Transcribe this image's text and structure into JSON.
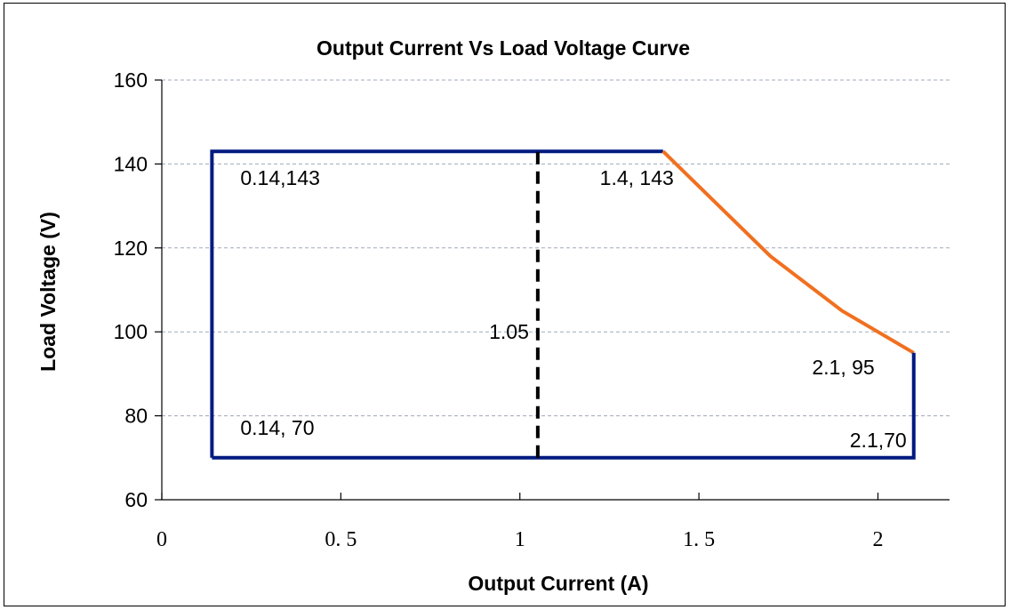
{
  "chart_data": {
    "type": "line",
    "title": "Output Current Vs Load Voltage Curve",
    "xlabel": "Output Current (A)",
    "ylabel": "Load Voltage (V)",
    "xlim": [
      0,
      2.2
    ],
    "ylim": [
      60,
      160
    ],
    "x_ticks": [
      {
        "value": 0,
        "label": "0"
      },
      {
        "value": 0.5,
        "label": "0. 5"
      },
      {
        "value": 1,
        "label": "1"
      },
      {
        "value": 1.5,
        "label": "1. 5"
      },
      {
        "value": 2,
        "label": "2"
      }
    ],
    "y_ticks": [
      {
        "value": 60,
        "label": "60"
      },
      {
        "value": 80,
        "label": "80"
      },
      {
        "value": 100,
        "label": "100"
      },
      {
        "value": 120,
        "label": "120"
      },
      {
        "value": 140,
        "label": "140"
      },
      {
        "value": 160,
        "label": "160"
      }
    ],
    "grid": "horizontal-dashed",
    "series": [
      {
        "color": "#001a80",
        "style": "solid",
        "points": [
          [
            0.14,
            70
          ],
          [
            0.14,
            143
          ],
          [
            1.4,
            143
          ]
        ]
      },
      {
        "color": "#f07020",
        "style": "solid",
        "points": [
          [
            1.4,
            143
          ],
          [
            1.7,
            118
          ],
          [
            1.9,
            105
          ],
          [
            2.1,
            95
          ]
        ]
      },
      {
        "color": "#001a80",
        "style": "solid",
        "points": [
          [
            2.1,
            95
          ],
          [
            2.1,
            70
          ],
          [
            0.14,
            70
          ]
        ]
      },
      {
        "color": "#000000",
        "style": "dashed",
        "points": [
          [
            1.05,
            70
          ],
          [
            1.05,
            143
          ]
        ]
      }
    ],
    "annotations": [
      {
        "text": "0.14,143",
        "x": 0.14,
        "y": 143,
        "placement": "below-right"
      },
      {
        "text": "1.4, 143",
        "x": 1.4,
        "y": 143,
        "placement": "below-left"
      },
      {
        "text": "1.05",
        "x": 1.05,
        "y": 100,
        "placement": "left"
      },
      {
        "text": "2.1, 95",
        "x": 2.1,
        "y": 95,
        "placement": "below-left"
      },
      {
        "text": "0.14, 70",
        "x": 0.14,
        "y": 70,
        "placement": "above-right"
      },
      {
        "text": "2.1,70",
        "x": 2.1,
        "y": 70,
        "placement": "above-left"
      }
    ]
  }
}
